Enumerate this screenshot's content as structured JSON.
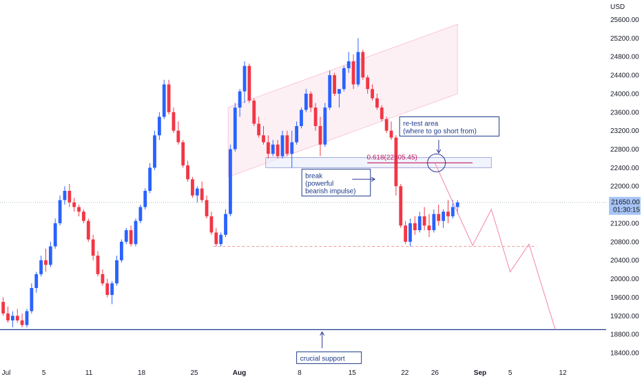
{
  "chart_data": {
    "type": "candlestick",
    "currency": "USD",
    "y_ticks": [
      "25600.00",
      "25200.00",
      "24800.00",
      "24400.00",
      "24000.00",
      "23600.00",
      "23200.00",
      "22800.00",
      "22400.00",
      "22000.00",
      "21600.00",
      "21200.00",
      "20800.00",
      "20400.00",
      "20000.00",
      "19600.00",
      "19200.00",
      "18800.00",
      "18400.00"
    ],
    "y_tick_values": [
      25600,
      25200,
      24800,
      24400,
      24000,
      23600,
      23200,
      22800,
      22400,
      22000,
      21600,
      21200,
      20800,
      20400,
      20000,
      19600,
      19200,
      18800,
      18400
    ],
    "ylim": [
      18000,
      25900
    ],
    "x_ticks": [
      "Jul",
      "5",
      "11",
      "18",
      "25",
      "Aug",
      "8",
      "15",
      "22",
      "26",
      "Sep",
      "5",
      "12"
    ],
    "x_tick_days": [
      0,
      5,
      11,
      18,
      25,
      31,
      39,
      46,
      53,
      57,
      63,
      67,
      74
    ],
    "last_price": "21650.00",
    "countdown": "01:30:15",
    "colors": {
      "up": "#2962ff",
      "down": "#f23645",
      "support": "#1e3a8a",
      "label_box": "#1e3a8a",
      "fib": "#c2185b",
      "projection": "#f48fb1",
      "channel_fill": "#fce4ec",
      "price_tag": "#a7c4f5"
    },
    "candle_count": 97,
    "candle_step_days": 0.667,
    "first_candle_day": -0.4,
    "ohlc": [
      [
        19500,
        19600,
        19200,
        19250
      ],
      [
        19250,
        19400,
        19050,
        19100
      ],
      [
        19100,
        19300,
        18950,
        19200
      ],
      [
        19200,
        19350,
        19050,
        19100
      ],
      [
        19100,
        19250,
        18950,
        19000
      ],
      [
        19000,
        19350,
        18950,
        19300
      ],
      [
        19300,
        19900,
        19250,
        19800
      ],
      [
        19800,
        20150,
        19700,
        20100
      ],
      [
        20100,
        20500,
        20050,
        20400
      ],
      [
        20400,
        20650,
        20150,
        20300
      ],
      [
        20300,
        20800,
        20250,
        20700
      ],
      [
        20700,
        21300,
        20650,
        21200
      ],
      [
        21200,
        21800,
        21150,
        21700
      ],
      [
        21700,
        22000,
        21600,
        21900
      ],
      [
        21900,
        22050,
        21550,
        21650
      ],
      [
        21650,
        21750,
        21450,
        21550
      ],
      [
        21550,
        21600,
        21350,
        21450
      ],
      [
        21450,
        21500,
        21200,
        21250
      ],
      [
        21250,
        21300,
        20800,
        20850
      ],
      [
        20850,
        20950,
        20400,
        20500
      ],
      [
        20500,
        20600,
        20050,
        20100
      ],
      [
        20100,
        20200,
        19850,
        19900
      ],
      [
        19900,
        20000,
        19600,
        19650
      ],
      [
        19650,
        19950,
        19450,
        19900
      ],
      [
        19900,
        20500,
        19850,
        20400
      ],
      [
        20400,
        20850,
        20350,
        20800
      ],
      [
        20800,
        21100,
        20750,
        21050
      ],
      [
        21050,
        21150,
        20700,
        20750
      ],
      [
        20750,
        21300,
        20700,
        21250
      ],
      [
        21250,
        21600,
        21200,
        21550
      ],
      [
        21550,
        21950,
        21500,
        21900
      ],
      [
        21900,
        22500,
        21850,
        22400
      ],
      [
        22400,
        23200,
        22350,
        23100
      ],
      [
        23100,
        23600,
        23000,
        23500
      ],
      [
        23500,
        24300,
        23450,
        24200
      ],
      [
        24200,
        24300,
        23550,
        23600
      ],
      [
        23600,
        23700,
        23150,
        23200
      ],
      [
        23200,
        23400,
        22900,
        22950
      ],
      [
        22950,
        23000,
        22400,
        22450
      ],
      [
        22450,
        22550,
        22100,
        22150
      ],
      [
        22150,
        22200,
        21750,
        21800
      ],
      [
        21800,
        22000,
        21650,
        21950
      ],
      [
        21950,
        22100,
        21650,
        21700
      ],
      [
        21700,
        21800,
        21300,
        21350
      ],
      [
        21350,
        21450,
        20950,
        21000
      ],
      [
        21000,
        21100,
        20700,
        20750
      ],
      [
        20750,
        21000,
        20700,
        20950
      ],
      [
        20950,
        21500,
        20900,
        21400
      ],
      [
        21400,
        22900,
        21350,
        22800
      ],
      [
        22800,
        23800,
        22750,
        23700
      ],
      [
        23700,
        24100,
        23500,
        24050
      ],
      [
        24050,
        24700,
        23800,
        24600
      ],
      [
        24600,
        24650,
        23800,
        23850
      ],
      [
        23850,
        23900,
        23300,
        23350
      ],
      [
        23350,
        23500,
        23050,
        23100
      ],
      [
        23100,
        23300,
        22900,
        22950
      ],
      [
        22950,
        23100,
        22600,
        22700
      ],
      [
        22700,
        23000,
        22650,
        22900
      ],
      [
        22900,
        23000,
        22600,
        22650
      ],
      [
        22650,
        23200,
        22600,
        23100
      ],
      [
        23100,
        23200,
        22650,
        22700
      ],
      [
        22700,
        23200,
        22400,
        22950
      ],
      [
        22950,
        23400,
        22900,
        23300
      ],
      [
        23300,
        23700,
        23250,
        23650
      ],
      [
        23650,
        24100,
        23600,
        24000
      ],
      [
        24000,
        24050,
        23600,
        23700
      ],
      [
        23700,
        23800,
        23200,
        23300
      ],
      [
        23300,
        23500,
        22650,
        22900
      ],
      [
        22900,
        23800,
        22850,
        23700
      ],
      [
        23700,
        24500,
        23650,
        24400
      ],
      [
        24400,
        24450,
        23950,
        24000
      ],
      [
        24000,
        24100,
        23700,
        24100
      ],
      [
        24100,
        24600,
        24050,
        24550
      ],
      [
        24550,
        24900,
        24450,
        24700
      ],
      [
        24700,
        24850,
        24100,
        24200
      ],
      [
        24200,
        25200,
        24150,
        24900
      ],
      [
        24900,
        24950,
        24300,
        24350
      ],
      [
        24350,
        24400,
        24000,
        24100
      ],
      [
        24100,
        24200,
        23850,
        23900
      ],
      [
        23900,
        24000,
        23650,
        23700
      ],
      [
        23700,
        23750,
        23400,
        23450
      ],
      [
        23450,
        23500,
        23150,
        23200
      ],
      [
        23200,
        23400,
        23000,
        23050
      ],
      [
        23050,
        23100,
        21800,
        22000
      ],
      [
        22000,
        22050,
        21100,
        21150
      ],
      [
        21150,
        21250,
        20750,
        20800
      ],
      [
        20800,
        21300,
        20700,
        21200
      ],
      [
        21200,
        21350,
        20950,
        21050
      ],
      [
        21050,
        21450,
        21000,
        21350
      ],
      [
        21350,
        21550,
        21050,
        21150
      ],
      [
        21150,
        21400,
        20900,
        21050
      ],
      [
        21050,
        21500,
        21000,
        21400
      ],
      [
        21400,
        21600,
        21150,
        21250
      ],
      [
        21250,
        21500,
        21100,
        21450
      ],
      [
        21450,
        21700,
        21200,
        21350
      ],
      [
        21350,
        21700,
        21300,
        21550
      ],
      [
        21550,
        21700,
        21400,
        21650
      ]
    ],
    "support_level": 18900,
    "dashed_level": 20700,
    "fib_level": 22505.45,
    "fib_label": "0.618(22505.45)",
    "retest_box": [
      22400,
      22620
    ],
    "channel": {
      "start_day": 29.5,
      "end_day": 60,
      "lower_start": 22200,
      "lower_end": 24000,
      "width": 1500
    },
    "projection_path": [
      [
        57,
        22500
      ],
      [
        62,
        20720
      ],
      [
        64.5,
        21500
      ],
      [
        67,
        20150
      ],
      [
        69.5,
        20750
      ],
      [
        73,
        18900
      ]
    ],
    "annotations": {
      "retest": [
        "re-test area",
        "(where to go short from)"
      ],
      "break": [
        "break",
        "(powerful",
        "bearish impulse)"
      ],
      "support": "crucial support"
    }
  }
}
